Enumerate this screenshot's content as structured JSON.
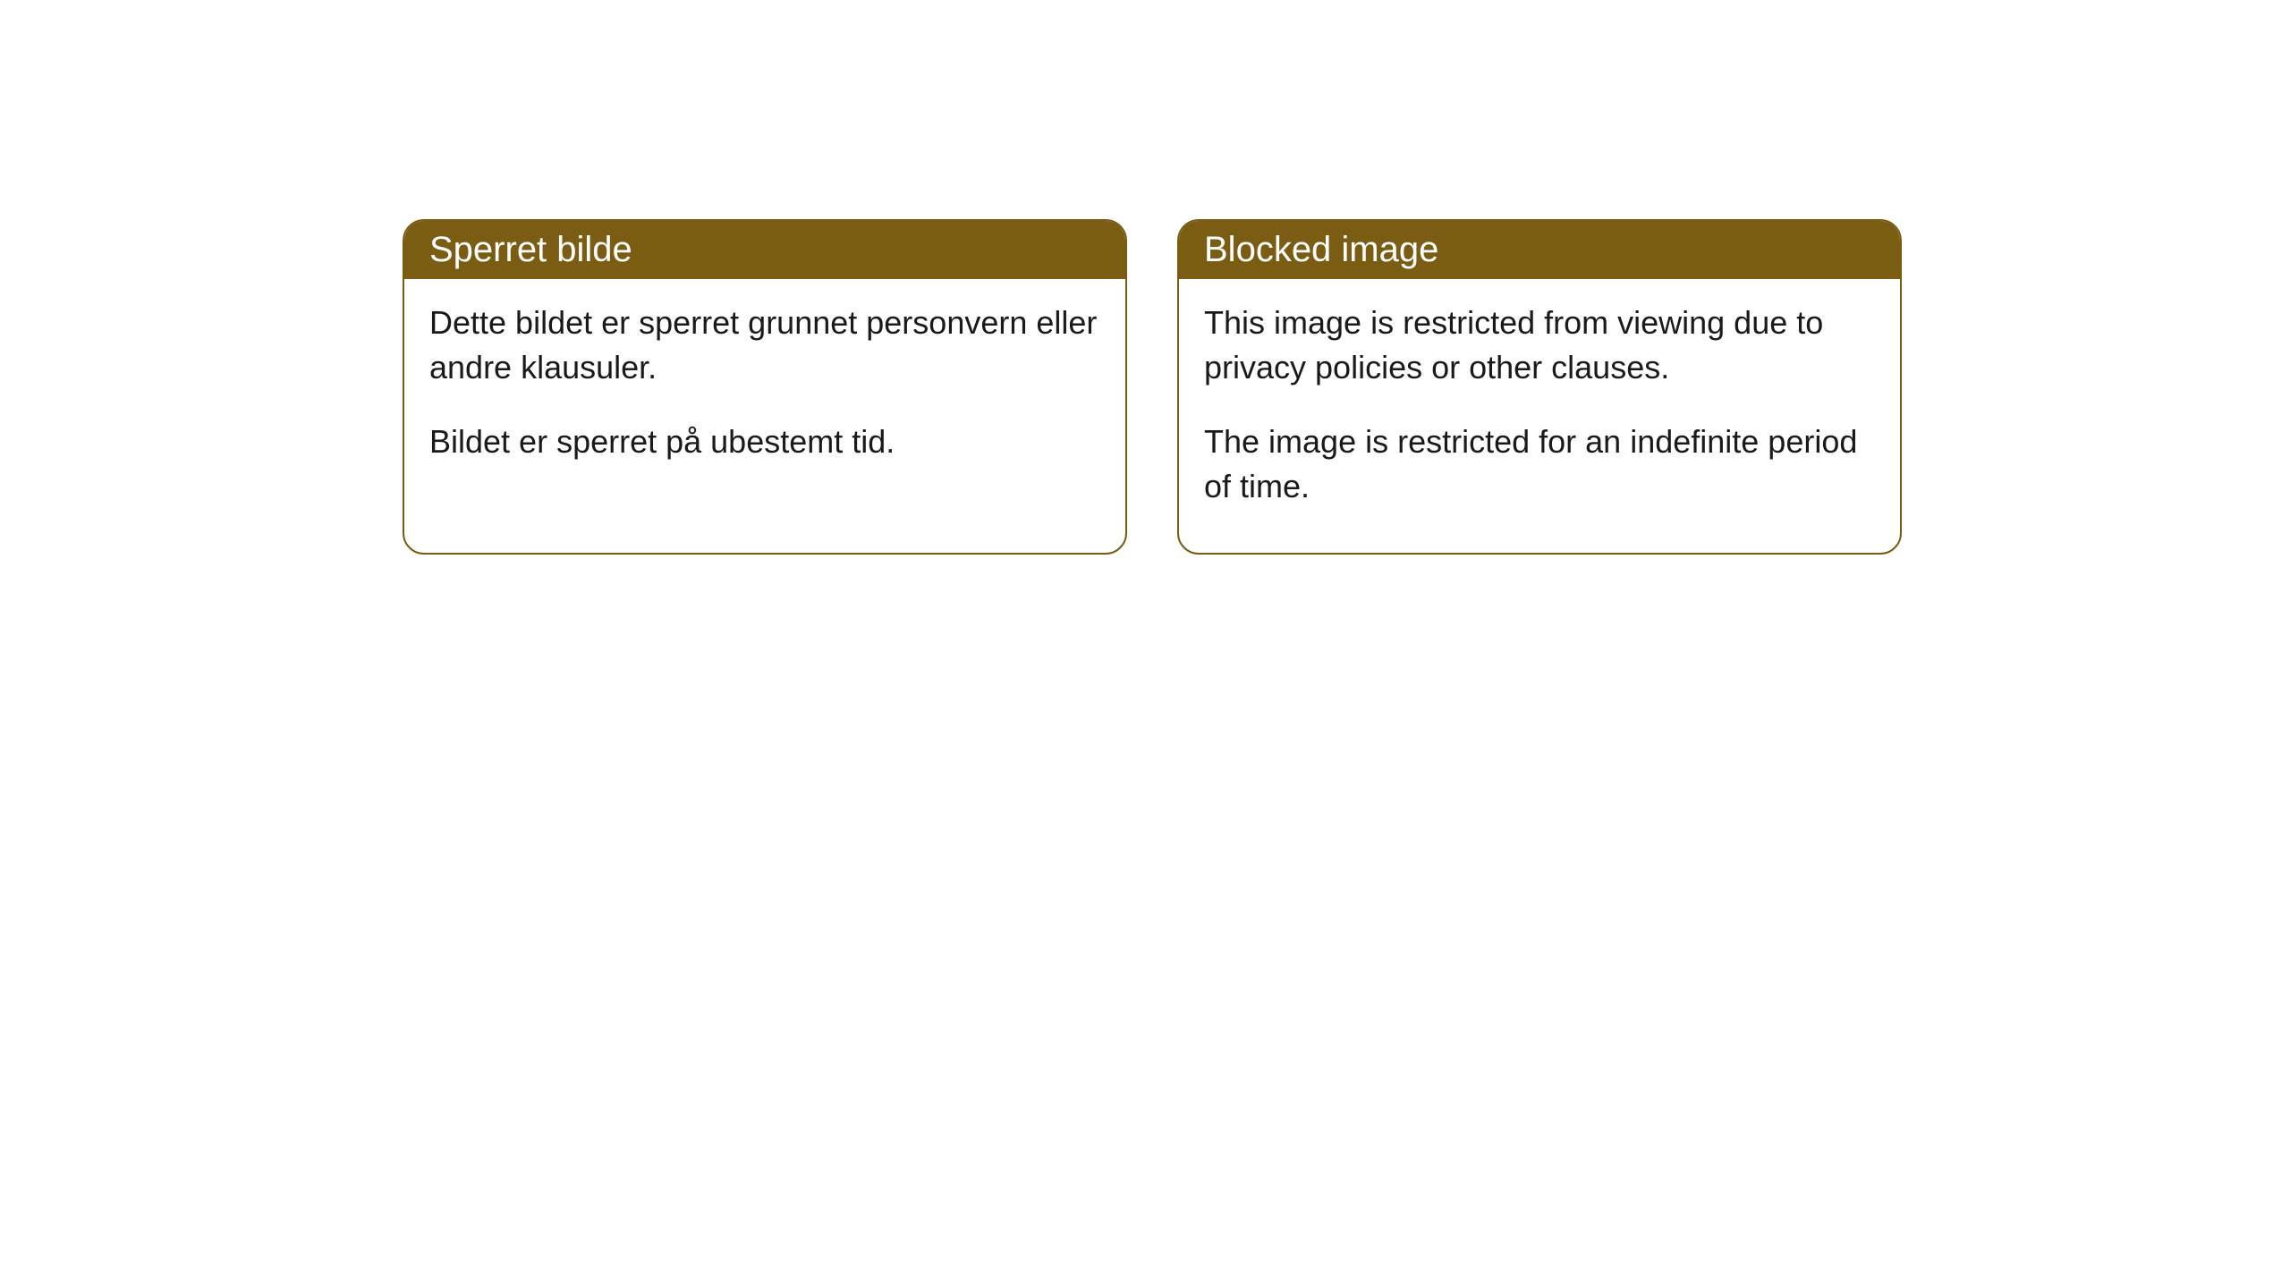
{
  "cards": [
    {
      "title": "Sperret bilde",
      "paragraph1": "Dette bildet er sperret grunnet personvern eller andre klausuler.",
      "paragraph2": "Bildet er sperret på ubestemt tid."
    },
    {
      "title": "Blocked image",
      "paragraph1": "This image is restricted from viewing due to privacy policies or other clauses.",
      "paragraph2": "The image is restricted for an indefinite period of time."
    }
  ],
  "styling": {
    "header_background": "#7a5d13",
    "header_text_color": "#ffffff",
    "border_color": "#7a5d13",
    "body_text_color": "#1a1a1a",
    "page_background": "#ffffff",
    "border_radius": "24px",
    "header_fontsize": 40,
    "body_fontsize": 36
  }
}
